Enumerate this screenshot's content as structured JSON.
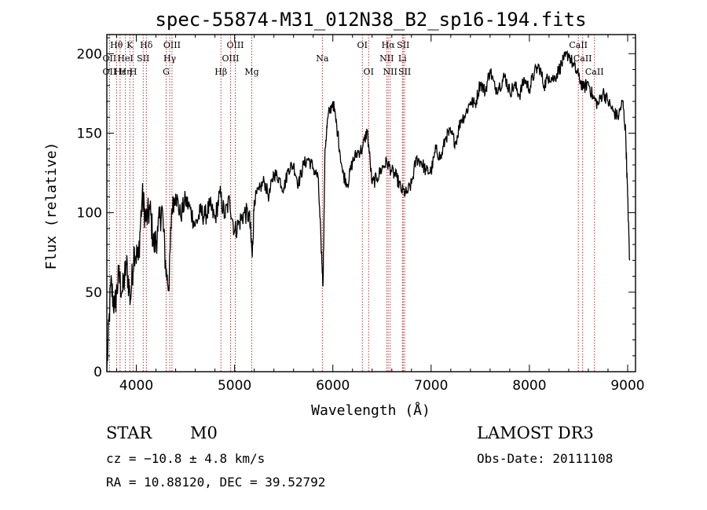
{
  "chart_data": {
    "type": "line",
    "title": "spec-55874-M31_012N38_B2_sp16-194.fits",
    "xlabel": "Wavelength (Å)",
    "ylabel": "Flux (relative)",
    "xlim": [
      3700,
      9080
    ],
    "ylim": [
      0,
      212
    ],
    "xticks": [
      4000,
      5000,
      6000,
      7000,
      8000,
      9000
    ],
    "yticks": [
      0,
      50,
      100,
      150,
      200
    ],
    "series": [
      {
        "name": "flux",
        "x": [
          3700,
          3740,
          3780,
          3820,
          3860,
          3900,
          3940,
          3980,
          4020,
          4060,
          4100,
          4140,
          4180,
          4220,
          4260,
          4300,
          4330,
          4360,
          4400,
          4450,
          4500,
          4550,
          4600,
          4650,
          4700,
          4750,
          4800,
          4850,
          4900,
          4950,
          5000,
          5050,
          5100,
          5150,
          5180,
          5200,
          5250,
          5300,
          5350,
          5400,
          5450,
          5500,
          5550,
          5600,
          5650,
          5700,
          5750,
          5800,
          5850,
          5880,
          5900,
          5920,
          5950,
          6000,
          6050,
          6100,
          6150,
          6200,
          6250,
          6300,
          6350,
          6400,
          6450,
          6500,
          6550,
          6600,
          6650,
          6700,
          6750,
          6800,
          6850,
          6900,
          6950,
          7000,
          7050,
          7100,
          7150,
          7200,
          7250,
          7300,
          7350,
          7400,
          7450,
          7500,
          7550,
          7600,
          7650,
          7700,
          7750,
          7800,
          7850,
          7900,
          7950,
          8000,
          8050,
          8100,
          8150,
          8200,
          8250,
          8300,
          8350,
          8400,
          8450,
          8500,
          8550,
          8600,
          8650,
          8700,
          8750,
          8800,
          8850,
          8900,
          8950,
          8980,
          9000,
          9020
        ],
        "values": [
          0,
          55,
          40,
          60,
          50,
          68,
          45,
          78,
          70,
          110,
          95,
          102,
          78,
          88,
          104,
          65,
          52,
          102,
          112,
          98,
          108,
          102,
          92,
          100,
          98,
          104,
          96,
          112,
          98,
          108,
          88,
          94,
          100,
          98,
          72,
          108,
          114,
          120,
          110,
          125,
          122,
          115,
          128,
          130,
          118,
          130,
          134,
          128,
          122,
          80,
          55,
          140,
          160,
          170,
          150,
          125,
          118,
          132,
          138,
          140,
          152,
          118,
          122,
          128,
          132,
          126,
          122,
          114,
          112,
          118,
          134,
          132,
          126,
          126,
          140,
          134,
          148,
          150,
          144,
          158,
          162,
          170,
          168,
          182,
          176,
          190,
          178,
          180,
          186,
          176,
          180,
          174,
          184,
          178,
          188,
          192,
          180,
          186,
          184,
          190,
          196,
          200,
          192,
          186,
          178,
          182,
          172,
          168,
          176,
          170,
          164,
          160,
          170,
          150,
          110,
          70
        ]
      }
    ],
    "spectral_lines": [
      {
        "label": "Hθ",
        "x": 3798,
        "row": 0
      },
      {
        "label": "OII",
        "x": 3727,
        "row": 1
      },
      {
        "label": "OII",
        "x": 3727,
        "row": 2
      },
      {
        "label": "Hε",
        "x": 3835,
        "row": 2
      },
      {
        "label": "K",
        "x": 3934,
        "row": 0
      },
      {
        "label": "HeI",
        "x": 3889,
        "row": 1
      },
      {
        "label": "SII",
        "x": 4070,
        "row": 1
      },
      {
        "label": "Hη",
        "x": 3889,
        "row": 2
      },
      {
        "label": "H",
        "x": 3969,
        "row": 2
      },
      {
        "label": "Hδ",
        "x": 4102,
        "row": 0
      },
      {
        "label": "OIII",
        "x": 4363,
        "row": 0
      },
      {
        "label": "Hγ",
        "x": 4340,
        "row": 1
      },
      {
        "label": "G",
        "x": 4304,
        "row": 2
      },
      {
        "label": "Hβ",
        "x": 4861,
        "row": 2
      },
      {
        "label": "OIII",
        "x": 5007,
        "row": 0
      },
      {
        "label": "OIII",
        "x": 4959,
        "row": 1
      },
      {
        "label": "Mg",
        "x": 5175,
        "row": 2
      },
      {
        "label": "Na",
        "x": 5893,
        "row": 1
      },
      {
        "label": "OI",
        "x": 6300,
        "row": 0
      },
      {
        "label": "OI",
        "x": 6364,
        "row": 2
      },
      {
        "label": "Hα",
        "x": 6563,
        "row": 0
      },
      {
        "label": "NII",
        "x": 6548,
        "row": 1
      },
      {
        "label": "NII",
        "x": 6583,
        "row": 2
      },
      {
        "label": "SII",
        "x": 6716,
        "row": 0
      },
      {
        "label": "Li",
        "x": 6708,
        "row": 1
      },
      {
        "label": "SII",
        "x": 6731,
        "row": 2
      },
      {
        "label": "CaII",
        "x": 8498,
        "row": 0
      },
      {
        "label": "CaII",
        "x": 8542,
        "row": 1
      },
      {
        "label": "CaII",
        "x": 8662,
        "row": 2
      }
    ],
    "line_markers_x": [
      3727,
      3798,
      3835,
      3889,
      3934,
      3969,
      4070,
      4102,
      4304,
      4340,
      4363,
      4861,
      4959,
      5007,
      5175,
      5893,
      6300,
      6364,
      6548,
      6563,
      6583,
      6708,
      6716,
      6731,
      8498,
      8542,
      8662
    ]
  },
  "info": {
    "object_class": "STAR",
    "subclass": "M0",
    "survey": "LAMOST DR3",
    "redshift": "cz = −10.8 ± 4.8 km/s",
    "obs_date": "Obs-Date: 20111108",
    "coords": "RA =  10.88120, DEC =  39.52792"
  }
}
